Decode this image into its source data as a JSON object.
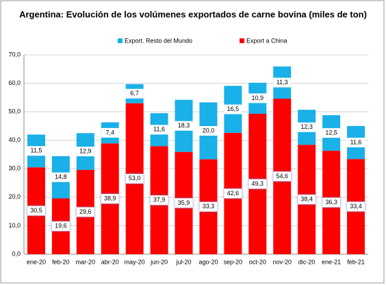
{
  "chart_data": {
    "type": "stacked_bar",
    "title": "Argentina: Evolución de los volúmenes exportados de carne bovina (miles de ton)",
    "categories": [
      "ene-20",
      "feb-20",
      "mar-20",
      "abr-20",
      "may-20",
      "jun-20",
      "jul-20",
      "ago-20",
      "sep-20",
      "oct-20",
      "nov-20",
      "dic-20",
      "ene-21",
      "feb-21"
    ],
    "series": [
      {
        "name": "Export a China",
        "color": "#ff0000",
        "values": [
          30.5,
          19.6,
          29.6,
          38.9,
          53.0,
          37.9,
          35.9,
          33.3,
          42.6,
          49.3,
          54.6,
          38.4,
          36.3,
          33.4
        ],
        "value_labels": [
          "30,5",
          "19,6",
          "29,6",
          "38,9",
          "53,0",
          "37,9",
          "35,9",
          "33,3",
          "42,6",
          "49,3",
          "54,6",
          "38,4",
          "36,3",
          "33,4"
        ]
      },
      {
        "name": "Export. Resto del Mundo",
        "color": "#1ab0e8",
        "values": [
          11.5,
          14.8,
          12.9,
          7.4,
          6.7,
          11.6,
          18.3,
          20.0,
          16.5,
          10.9,
          11.3,
          12.3,
          12.5,
          11.6
        ],
        "value_labels": [
          "11,5",
          "14,8",
          "12,9",
          "7,4",
          "6,7",
          "11,6",
          "18,3",
          "20,0",
          "16,5",
          "10,9",
          "11,3",
          "12,3",
          "12,5",
          "11,6"
        ]
      }
    ],
    "ylim": [
      0,
      70
    ],
    "yticks": [
      {
        "value": 0,
        "label": "0,0"
      },
      {
        "value": 10,
        "label": "10,0"
      },
      {
        "value": 20,
        "label": "20,0"
      },
      {
        "value": 30,
        "label": "30,0"
      },
      {
        "value": 40,
        "label": "40,0"
      },
      {
        "value": 50,
        "label": "50,0"
      },
      {
        "value": 60,
        "label": "60,0"
      },
      {
        "value": 70,
        "label": "70,0"
      }
    ],
    "grid": true
  }
}
